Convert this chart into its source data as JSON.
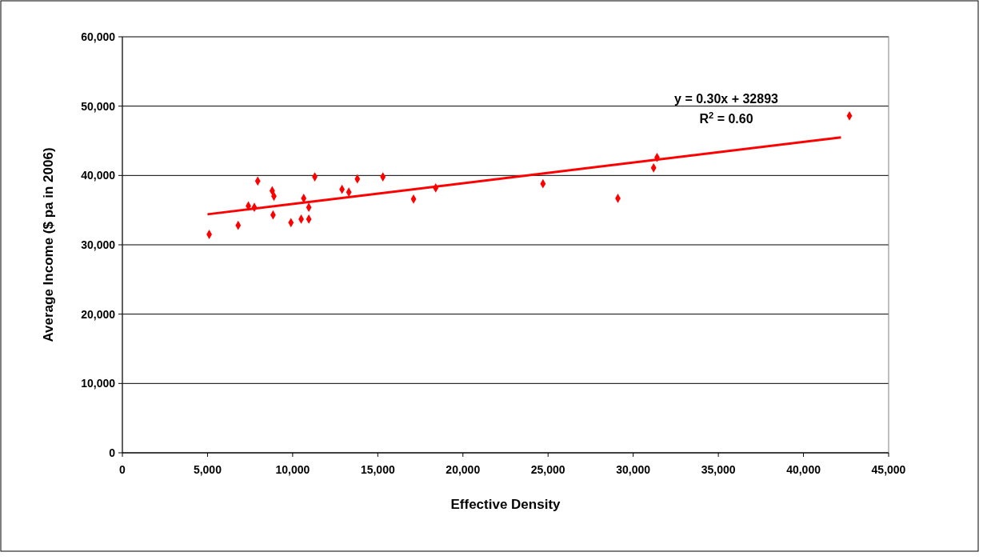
{
  "chart_data": {
    "type": "scatter",
    "xlabel": "Effective Density",
    "ylabel": "Average Income ($ pa in 2006)",
    "xlim": [
      0,
      45000
    ],
    "xticks": [
      {
        "value": 0,
        "label": "0"
      },
      {
        "value": 5000,
        "label": "5,000"
      },
      {
        "value": 10000,
        "label": "10,000"
      },
      {
        "value": 15000,
        "label": "15,000"
      },
      {
        "value": 20000,
        "label": "20,000"
      },
      {
        "value": 25000,
        "label": "25,000"
      },
      {
        "value": 30000,
        "label": "30,000"
      },
      {
        "value": 35000,
        "label": "35,000"
      },
      {
        "value": 40000,
        "label": "40,000"
      },
      {
        "value": 45000,
        "label": "45,000"
      }
    ],
    "ylim": [
      0,
      60000
    ],
    "yticks": [
      {
        "value": 0,
        "label": "0"
      },
      {
        "value": 10000,
        "label": "10,000"
      },
      {
        "value": 20000,
        "label": "20,000"
      },
      {
        "value": 30000,
        "label": "30,000"
      },
      {
        "value": 40000,
        "label": "40,000"
      },
      {
        "value": 50000,
        "label": "50,000"
      },
      {
        "value": 60000,
        "label": "60,000"
      }
    ],
    "grid": "y",
    "series": [
      {
        "marker": "diamond",
        "color": "#ff0000",
        "x": [
          5100,
          6800,
          7400,
          7750,
          7950,
          8800,
          8900,
          8850,
          9900,
          10500,
          10950,
          10650,
          10950,
          11300,
          12900,
          13300,
          13800,
          15300,
          17100,
          18400,
          24700,
          29100,
          31200,
          31400,
          42700
        ],
        "values": [
          31500,
          32800,
          35600,
          35400,
          39200,
          37800,
          37000,
          34300,
          33200,
          33700,
          33700,
          36700,
          35400,
          39800,
          38000,
          37600,
          39500,
          39800,
          36600,
          38200,
          38800,
          36700,
          41100,
          42600,
          48600
        ]
      },
      {
        "type": "line",
        "color": "#ff0000",
        "x": [
          5000,
          42200
        ],
        "values": [
          34400,
          45500
        ],
        "line_style": "solid",
        "marker": "none"
      }
    ],
    "annotations": [
      {
        "text": "y = 0.30x + 32893"
      },
      {
        "text": "R$^{2}$ = 0.60"
      }
    ]
  }
}
